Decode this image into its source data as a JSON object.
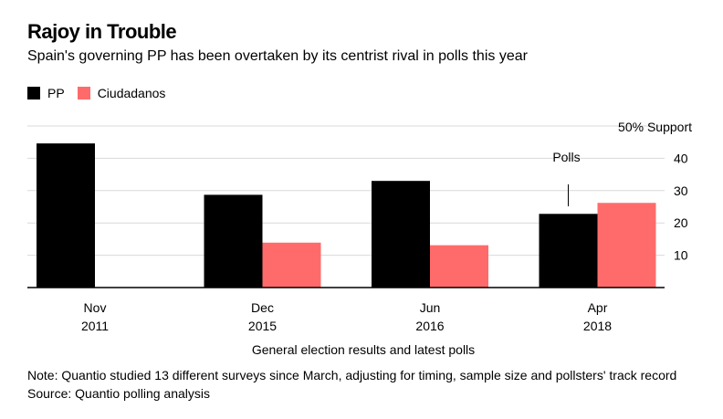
{
  "title": "Rajoy in Trouble",
  "subtitle": "Spain's governing PP has been overtaken by its centrist rival in polls this year",
  "legend": [
    {
      "label": "PP",
      "color": "#000000"
    },
    {
      "label": "Ciudadanos",
      "color": "#ff6b6b"
    }
  ],
  "note": "Note: Quantio studied 13 different surveys since March, adjusting for timing, sample size and pollsters' track record",
  "source": "Source: Quantio polling analysis",
  "chart_data": {
    "type": "bar",
    "categories": [
      [
        "Nov",
        "2011"
      ],
      [
        "Dec",
        "2015"
      ],
      [
        "Jun",
        "2016"
      ],
      [
        "Apr",
        "2018"
      ]
    ],
    "series": [
      {
        "name": "PP",
        "color": "#000000",
        "values": [
          44.6,
          28.7,
          33.0,
          22.8
        ]
      },
      {
        "name": "Ciudadanos",
        "color": "#ff6b6b",
        "values": [
          0.0,
          13.9,
          13.1,
          26.2
        ]
      }
    ],
    "ylim": [
      0,
      50
    ],
    "yticks": [
      10,
      20,
      30,
      40
    ],
    "ylabel": "50% Support",
    "xlabel": "General election results and latest polls",
    "annotation": {
      "text": "Polls",
      "category_index": 3
    }
  }
}
